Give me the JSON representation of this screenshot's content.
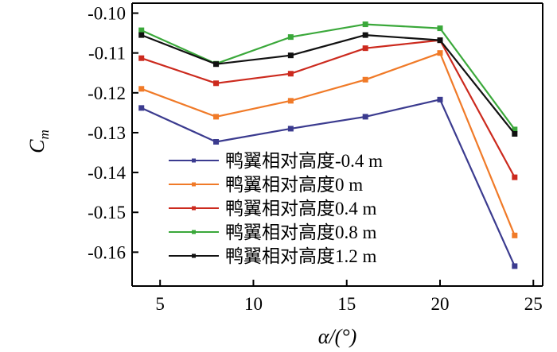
{
  "chart_data": {
    "type": "line",
    "title": "",
    "xlabel": "α/(°)",
    "ylabel": "C",
    "ylabel_subscript": "m",
    "xlim": [
      3.5,
      25.5
    ],
    "ylim": [
      -0.1685,
      -0.0975
    ],
    "xticks": [
      5,
      10,
      15,
      20,
      25
    ],
    "xtick_labels": [
      "5",
      "10",
      "15",
      "20",
      "25"
    ],
    "yticks": [
      -0.1,
      -0.11,
      -0.12,
      -0.13,
      -0.14,
      -0.15,
      -0.16
    ],
    "ytick_labels": [
      "-0.10",
      "-0.11",
      "-0.12",
      "-0.13",
      "-0.14",
      "-0.15",
      "-0.16"
    ],
    "grid": false,
    "legend_position": "center-bottom",
    "x": [
      4,
      8,
      12,
      16,
      20,
      24
    ],
    "series": [
      {
        "name": "鸭翼相对高度-0.4 m",
        "color": "#3b3b8f",
        "values": [
          -0.1238,
          -0.1323,
          -0.129,
          -0.126,
          -0.1217,
          -0.1635
        ]
      },
      {
        "name": "鸭翼相对高度0 m",
        "color": "#f07a28",
        "values": [
          -0.119,
          -0.126,
          -0.122,
          -0.1167,
          -0.11,
          -0.1558
        ]
      },
      {
        "name": "鸭翼相对高度0.4 m",
        "color": "#cc2a1e",
        "values": [
          -0.1113,
          -0.1176,
          -0.1152,
          -0.1088,
          -0.1068,
          -0.1412
        ]
      },
      {
        "name": "鸭翼相对高度0.8 m",
        "color": "#3aa83a",
        "values": [
          -0.1043,
          -0.1127,
          -0.106,
          -0.1028,
          -0.1038,
          -0.1292
        ]
      },
      {
        "name": "鸭翼相对高度1.2 m",
        "color": "#111111",
        "values": [
          -0.1055,
          -0.1128,
          -0.1106,
          -0.1055,
          -0.1068,
          -0.1303
        ]
      }
    ]
  }
}
